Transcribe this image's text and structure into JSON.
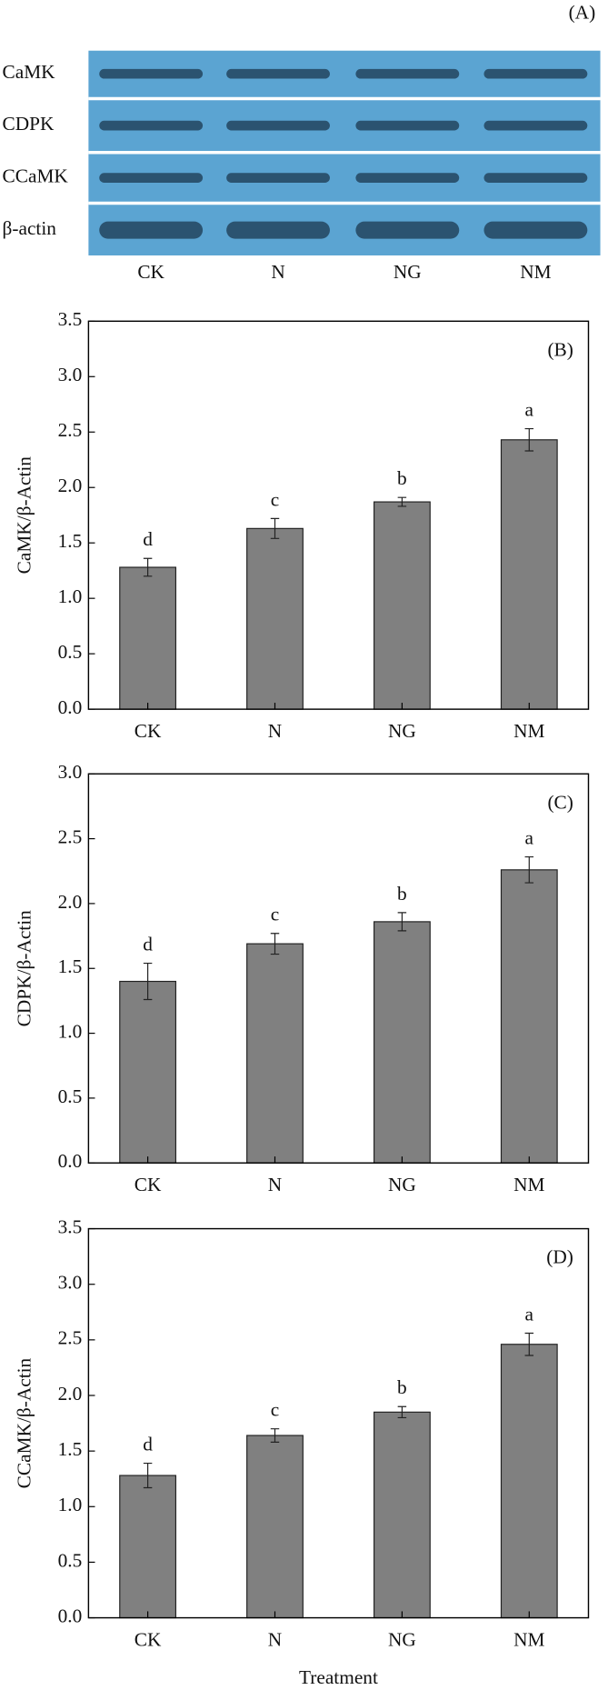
{
  "blot": {
    "label": "(A)",
    "rows": [
      "CaMK",
      "CDPK",
      "CCaMK",
      "β-actin"
    ],
    "lanes": [
      "CK",
      "N",
      "NG",
      "NM"
    ]
  },
  "chart_data": [
    {
      "type": "bar",
      "panel": "(B)",
      "ylabel": "CaMK/β-Actin",
      "categories": [
        "CK",
        "N",
        "NG",
        "NM"
      ],
      "values": [
        1.28,
        1.63,
        1.87,
        2.43
      ],
      "errors": [
        0.08,
        0.09,
        0.04,
        0.1
      ],
      "annotations": [
        "d",
        "c",
        "b",
        "a"
      ],
      "color": "#808080",
      "ylim": [
        0,
        3.5
      ],
      "yticks": [
        {
          "value": 0,
          "label": "0.0"
        },
        {
          "value": 0.5,
          "label": "0.5"
        },
        {
          "value": 1,
          "label": "1.0"
        },
        {
          "value": 1.5,
          "label": "1.5"
        },
        {
          "value": 2,
          "label": "2.0"
        },
        {
          "value": 2.5,
          "label": "2.5"
        },
        {
          "value": 3,
          "label": "3.0"
        },
        {
          "value": 3.5,
          "label": "3.5"
        }
      ]
    },
    {
      "type": "bar",
      "panel": "(C)",
      "ylabel": "CDPK/β-Actin",
      "categories": [
        "CK",
        "N",
        "NG",
        "NM"
      ],
      "values": [
        1.4,
        1.69,
        1.86,
        2.26
      ],
      "errors": [
        0.14,
        0.08,
        0.07,
        0.1
      ],
      "annotations": [
        "d",
        "c",
        "b",
        "a"
      ],
      "color": "#808080",
      "ylim": [
        0,
        3
      ],
      "yticks": [
        {
          "value": 0,
          "label": "0.0"
        },
        {
          "value": 0.5,
          "label": "0.5"
        },
        {
          "value": 1,
          "label": "1.0"
        },
        {
          "value": 1.5,
          "label": "1.5"
        },
        {
          "value": 2,
          "label": "2.0"
        },
        {
          "value": 2.5,
          "label": "2.5"
        },
        {
          "value": 3,
          "label": "3.0"
        }
      ]
    },
    {
      "type": "bar",
      "panel": "(D)",
      "ylabel": "CCaMK/β-Actin",
      "xlabel": "Treatment",
      "categories": [
        "CK",
        "N",
        "NG",
        "NM"
      ],
      "values": [
        1.28,
        1.64,
        1.85,
        2.46
      ],
      "errors": [
        0.11,
        0.06,
        0.05,
        0.1
      ],
      "annotations": [
        "d",
        "c",
        "b",
        "a"
      ],
      "color": "#808080",
      "ylim": [
        0,
        3.5
      ],
      "yticks": [
        {
          "value": 0,
          "label": "0.0"
        },
        {
          "value": 0.5,
          "label": "0.5"
        },
        {
          "value": 1,
          "label": "1.0"
        },
        {
          "value": 1.5,
          "label": "1.5"
        },
        {
          "value": 2,
          "label": "2.0"
        },
        {
          "value": 2.5,
          "label": "2.5"
        },
        {
          "value": 3,
          "label": "3.0"
        },
        {
          "value": 3.5,
          "label": "3.5"
        }
      ]
    }
  ]
}
